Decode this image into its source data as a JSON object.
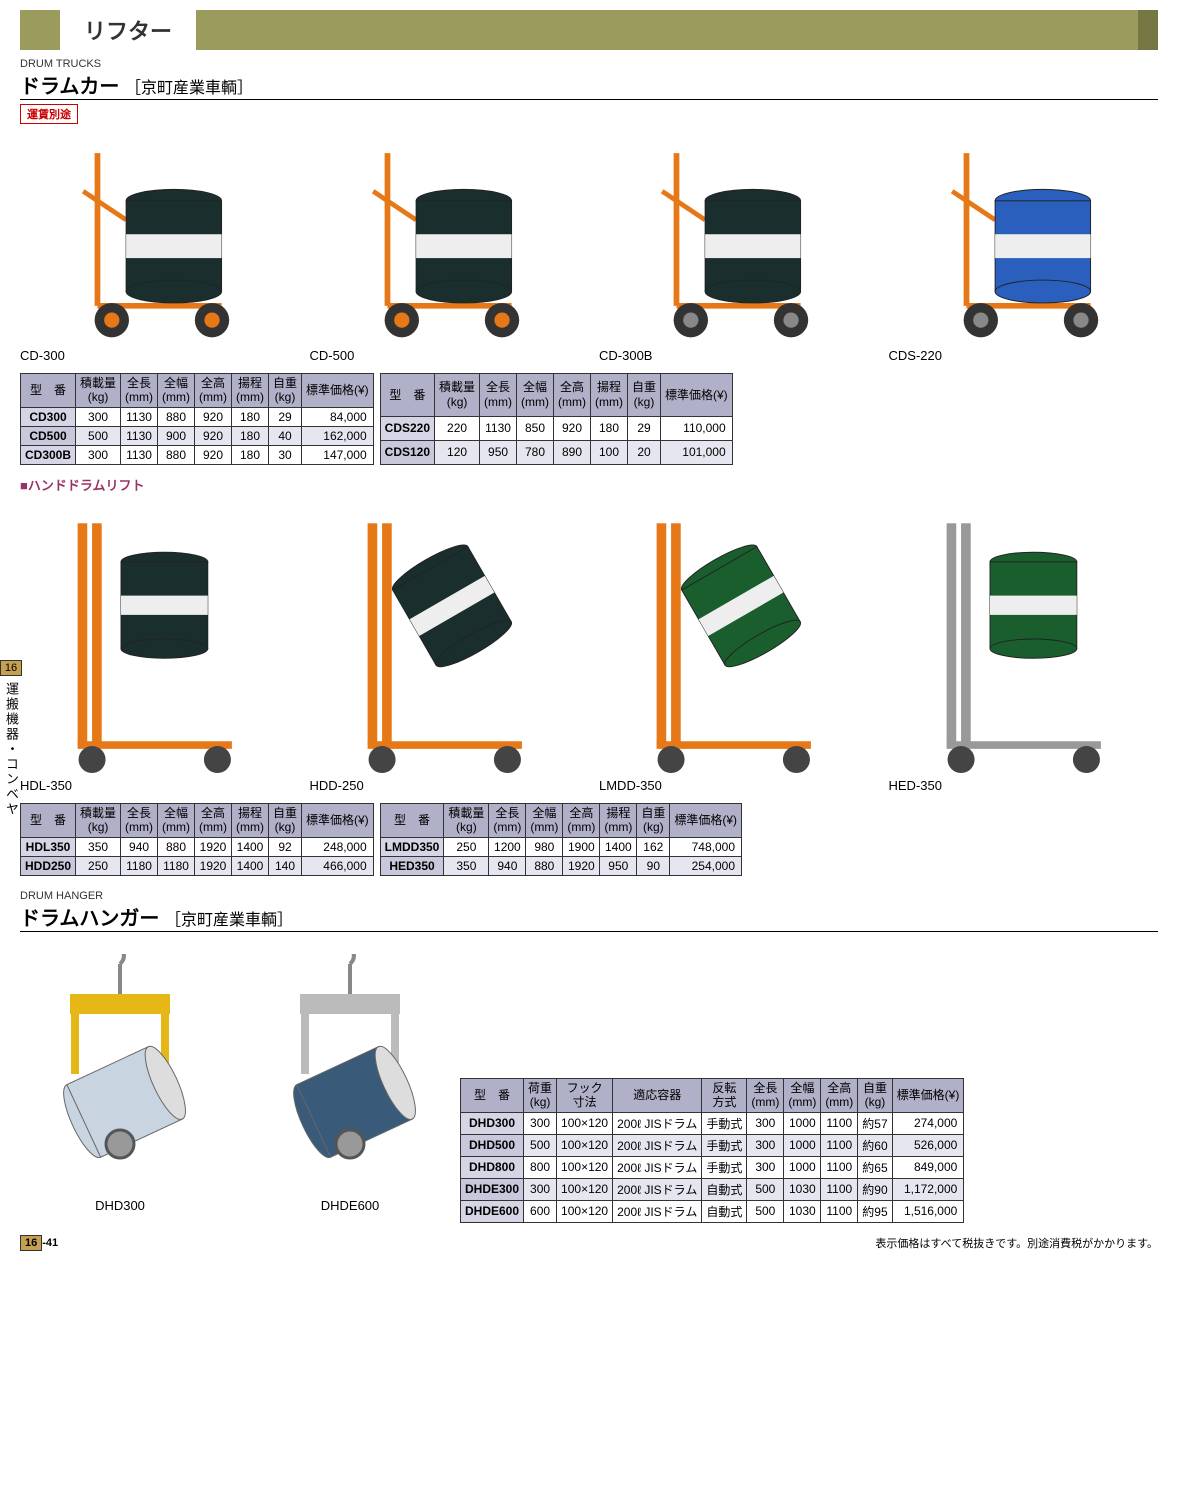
{
  "header": {
    "title": "リフター"
  },
  "section1": {
    "category_en": "DRUM TRUCKS",
    "title": "ドラムカー",
    "subtitle": "［京町産業車輌］",
    "badge": "運賃別途",
    "products": [
      {
        "label": "CD-300"
      },
      {
        "label": "CD-500"
      },
      {
        "label": "CD-300B"
      },
      {
        "label": "CDS-220"
      }
    ],
    "table1": {
      "headers": [
        "型　番",
        "積載量\n(kg)",
        "全長\n(mm)",
        "全幅\n(mm)",
        "全高\n(mm)",
        "揚程\n(mm)",
        "自重\n(kg)",
        "標準価格(¥)"
      ],
      "rows": [
        [
          "CD300",
          "300",
          "1130",
          "880",
          "920",
          "180",
          "29",
          "84,000"
        ],
        [
          "CD500",
          "500",
          "1130",
          "900",
          "920",
          "180",
          "40",
          "162,000"
        ],
        [
          "CD300B",
          "300",
          "1130",
          "880",
          "920",
          "180",
          "30",
          "147,000"
        ]
      ]
    },
    "table2": {
      "headers": [
        "型　番",
        "積載量\n(kg)",
        "全長\n(mm)",
        "全幅\n(mm)",
        "全高\n(mm)",
        "揚程\n(mm)",
        "自重\n(kg)",
        "標準価格(¥)"
      ],
      "rows": [
        [
          "CDS220",
          "220",
          "1130",
          "850",
          "920",
          "180",
          "29",
          "110,000"
        ],
        [
          "CDS120",
          "120",
          "950",
          "780",
          "890",
          "100",
          "20",
          "101,000"
        ]
      ]
    }
  },
  "section2": {
    "subheading": "■ハンドドラムリフト",
    "products": [
      {
        "label": "HDL-350"
      },
      {
        "label": "HDD-250"
      },
      {
        "label": "LMDD-350"
      },
      {
        "label": "HED-350"
      }
    ],
    "table1": {
      "headers": [
        "型　番",
        "積載量\n(kg)",
        "全長\n(mm)",
        "全幅\n(mm)",
        "全高\n(mm)",
        "揚程\n(mm)",
        "自重\n(kg)",
        "標準価格(¥)"
      ],
      "rows": [
        [
          "HDL350",
          "350",
          "940",
          "880",
          "1920",
          "1400",
          "92",
          "248,000"
        ],
        [
          "HDD250",
          "250",
          "1180",
          "1180",
          "1920",
          "1400",
          "140",
          "466,000"
        ]
      ]
    },
    "table2": {
      "headers": [
        "型　番",
        "積載量\n(kg)",
        "全長\n(mm)",
        "全幅\n(mm)",
        "全高\n(mm)",
        "揚程\n(mm)",
        "自重\n(kg)",
        "標準価格(¥)"
      ],
      "rows": [
        [
          "LMDD350",
          "250",
          "1200",
          "980",
          "1900",
          "1400",
          "162",
          "748,000"
        ],
        [
          "HED350",
          "350",
          "940",
          "880",
          "1920",
          "950",
          "90",
          "254,000"
        ]
      ]
    }
  },
  "section3": {
    "category_en": "DRUM HANGER",
    "title": "ドラムハンガー",
    "subtitle": "［京町産業車輌］",
    "products": [
      {
        "label": "DHD300"
      },
      {
        "label": "DHDE600"
      }
    ],
    "table": {
      "headers": [
        "型　番",
        "荷重\n(kg)",
        "フック\n寸法",
        "適応容器",
        "反転\n方式",
        "全長\n(mm)",
        "全幅\n(mm)",
        "全高\n(mm)",
        "自重\n(kg)",
        "標準価格(¥)"
      ],
      "rows": [
        [
          "DHD300",
          "300",
          "100×120",
          "200ℓ JISドラム",
          "手動式",
          "300",
          "1000",
          "1100",
          "約57",
          "274,000"
        ],
        [
          "DHD500",
          "500",
          "100×120",
          "200ℓ JISドラム",
          "手動式",
          "300",
          "1000",
          "1100",
          "約60",
          "526,000"
        ],
        [
          "DHD800",
          "800",
          "100×120",
          "200ℓ JISドラム",
          "手動式",
          "300",
          "1000",
          "1100",
          "約65",
          "849,000"
        ],
        [
          "DHDE300",
          "300",
          "100×120",
          "200ℓ JISドラム",
          "自動式",
          "500",
          "1030",
          "1100",
          "約90",
          "1,172,000"
        ],
        [
          "DHDE600",
          "600",
          "100×120",
          "200ℓ JISドラム",
          "自動式",
          "500",
          "1030",
          "1100",
          "約95",
          "1,516,000"
        ]
      ]
    }
  },
  "sidebar": {
    "num": "16",
    "text": "運搬機器・コンベヤ"
  },
  "footer": {
    "page": "16-41",
    "note": "表示価格はすべて税抜きです。別途消費税がかかります。"
  },
  "colors": {
    "header_bg": "#9b9b5e",
    "th_bg": "#b0b0c9",
    "model_bg": "#d5d5e6",
    "alt_bg": "#e6e6f0",
    "badge": "#c00",
    "side_num_bg": "#c4a050",
    "subheading": "#993366"
  }
}
